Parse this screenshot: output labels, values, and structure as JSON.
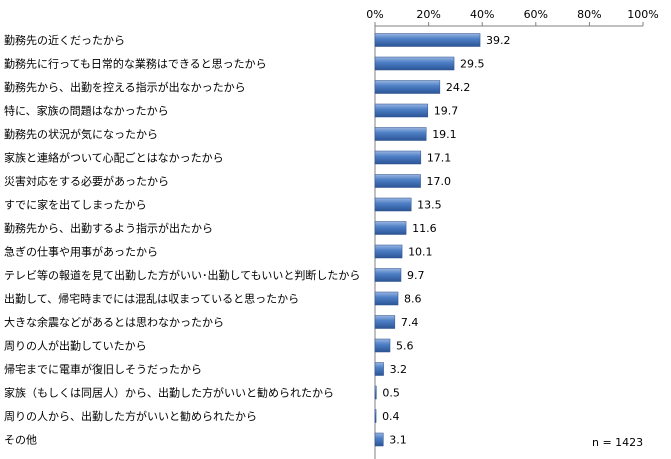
{
  "chart_data": {
    "type": "bar",
    "orientation": "horizontal",
    "categories": [
      "勤務先の近くだったから",
      "勤務先に行っても日常的な業務はできると思ったから",
      "勤務先から、出勤を控える指示が出なかったから",
      "特に、家族の問題はなかったから",
      "勤務先の状況が気になったから",
      "家族と連絡がついて心配ごとはなかったから",
      "災害対応をする必要があったから",
      "すでに家を出てしまったから",
      "勤務先から、出勤するよう指示が出たから",
      "急ぎの仕事や用事があったから",
      "テレビ等の報道を見て出勤した方がいい･出勤してもいいと判断したから",
      "出勤して、帰宅時までには混乱は収まっていると思ったから",
      "大きな余震などがあるとは思わなかったから",
      "周りの人が出勤していたから",
      "帰宅までに電車が復旧しそうだったから",
      "家族（もしくは同居人）から、出勤した方がいいと勧められたから",
      "周りの人から、出勤した方がいいと勧められたから",
      "その他"
    ],
    "values": [
      39.2,
      29.5,
      24.2,
      19.7,
      19.1,
      17.1,
      17.0,
      13.5,
      11.6,
      10.1,
      9.7,
      8.6,
      7.4,
      5.6,
      3.2,
      0.5,
      0.4,
      3.1
    ],
    "value_labels": [
      "39.2",
      "29.5",
      "24.2",
      "19.7",
      "19.1",
      "17.1",
      "17.0",
      "13.5",
      "11.6",
      "10.1",
      "9.7",
      "8.6",
      "7.4",
      "5.6",
      "3.2",
      "0.5",
      "0.4",
      "3.1"
    ],
    "xlim": [
      0,
      100
    ],
    "xticks": [
      0,
      20,
      40,
      60,
      80,
      100
    ],
    "xtick_labels": [
      "0%",
      "20%",
      "40%",
      "60%",
      "80%",
      "100%"
    ],
    "axis_position": "top",
    "grid": false,
    "bar_color": "#3d6fb5",
    "annotation": "n = 1423"
  }
}
